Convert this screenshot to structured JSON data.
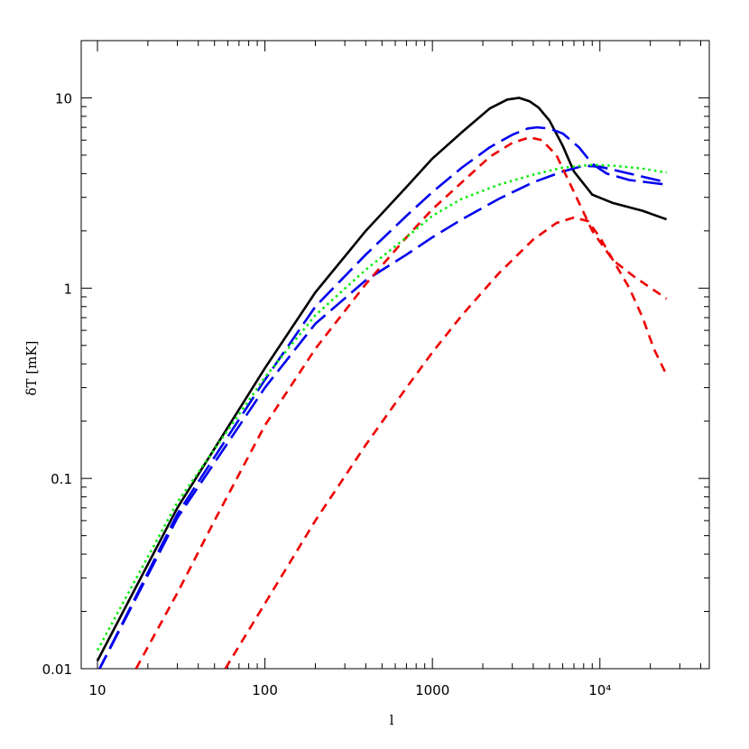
{
  "chart_data": {
    "type": "line",
    "title": "",
    "xlabel": "l",
    "ylabel": "δT [mK]",
    "xscale": "log",
    "yscale": "log",
    "xlim": [
      8,
      45000
    ],
    "ylim": [
      0.01,
      20
    ],
    "grid": false,
    "x_tick_labels": [
      {
        "value": 10,
        "label": "10"
      },
      {
        "value": 100,
        "label": "100"
      },
      {
        "value": 1000,
        "label": "1000"
      },
      {
        "value": 10000,
        "label": "10⁴"
      }
    ],
    "y_tick_labels": [
      {
        "value": 0.01,
        "label": "0.01"
      },
      {
        "value": 0.1,
        "label": "0.1"
      },
      {
        "value": 1,
        "label": "1"
      },
      {
        "value": 10,
        "label": "10"
      }
    ],
    "series": [
      {
        "color": "#000000",
        "dash": "solid",
        "x": [
          10,
          30,
          100,
          200,
          400,
          700,
          1000,
          1500,
          2200,
          2800,
          3300,
          3800,
          4300,
          5000,
          6000,
          7000,
          9000,
          12000,
          18000,
          25000
        ],
        "y": [
          0.011,
          0.07,
          0.38,
          0.95,
          2.0,
          3.4,
          4.8,
          6.6,
          8.8,
          9.8,
          10.0,
          9.6,
          8.9,
          7.6,
          5.6,
          4.1,
          3.1,
          2.8,
          2.55,
          2.3
        ]
      },
      {
        "color": "#0000ee",
        "dash": "long",
        "x": [
          10,
          30,
          100,
          200,
          400,
          700,
          1000,
          1500,
          2200,
          3000,
          3700,
          4200,
          5000,
          6000,
          7500,
          9000,
          11000,
          15000,
          25000
        ],
        "y": [
          0.0095,
          0.065,
          0.33,
          0.8,
          1.5,
          2.4,
          3.2,
          4.3,
          5.5,
          6.4,
          6.9,
          7.0,
          6.9,
          6.5,
          5.5,
          4.5,
          4.0,
          3.7,
          3.5
        ]
      },
      {
        "color": "#0000ee",
        "dash": "long",
        "x": [
          10,
          30,
          100,
          200,
          400,
          700,
          1000,
          1500,
          2500,
          4000,
          6000,
          8000,
          10000,
          15000,
          25000
        ],
        "y": [
          0.0095,
          0.062,
          0.3,
          0.65,
          1.1,
          1.5,
          1.85,
          2.3,
          2.95,
          3.6,
          4.1,
          4.4,
          4.35,
          4.0,
          3.6
        ]
      },
      {
        "color": "#ee0000",
        "dash": "short",
        "x": [
          17,
          30,
          50,
          100,
          200,
          400,
          700,
          1000,
          1500,
          2200,
          3000,
          3800,
          4500,
          5500,
          7000,
          9000,
          12000,
          16000,
          25000
        ],
        "y": [
          0.01,
          0.025,
          0.06,
          0.19,
          0.48,
          1.05,
          1.85,
          2.6,
          3.6,
          4.9,
          5.8,
          6.2,
          6.0,
          5.0,
          3.2,
          2.0,
          1.4,
          1.15,
          0.88
        ]
      },
      {
        "color": "#ee0000",
        "dash": "short",
        "x": [
          58,
          100,
          200,
          400,
          700,
          1000,
          1500,
          2500,
          4000,
          5500,
          7000,
          8500,
          10000,
          12000,
          15000,
          18000,
          21000,
          25000
        ],
        "y": [
          0.01,
          0.022,
          0.06,
          0.15,
          0.3,
          0.46,
          0.72,
          1.2,
          1.8,
          2.2,
          2.35,
          2.25,
          1.85,
          1.4,
          1.0,
          0.7,
          0.48,
          0.35
        ]
      },
      {
        "color": "#00ee00",
        "dash": "dotted",
        "x": [
          10,
          30,
          100,
          200,
          400,
          700,
          1000,
          1500,
          2500,
          4000,
          6000,
          9000,
          12000,
          18000,
          25000
        ],
        "y": [
          0.0125,
          0.075,
          0.34,
          0.72,
          1.25,
          1.85,
          2.4,
          2.95,
          3.5,
          3.95,
          4.3,
          4.45,
          4.4,
          4.25,
          4.05
        ]
      }
    ]
  }
}
